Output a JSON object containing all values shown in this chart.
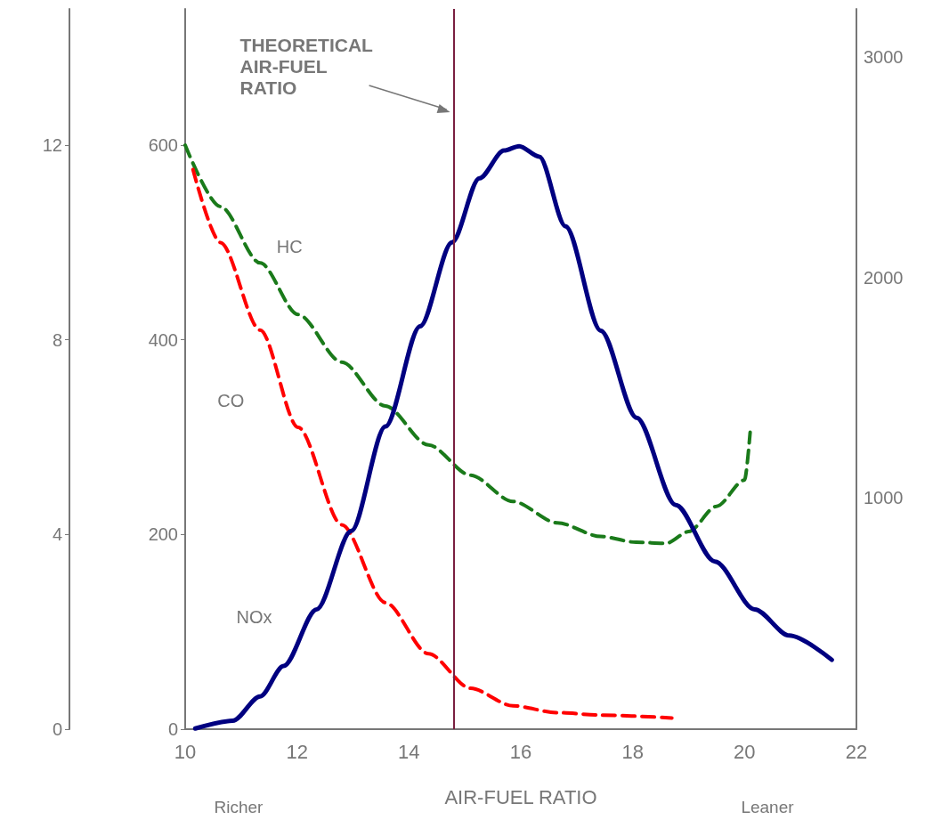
{
  "chart_data": {
    "type": "line",
    "xlabel": "AIR-FUEL RATIO",
    "xlim": [
      10,
      22
    ],
    "xticks": [
      10,
      12,
      14,
      16,
      18,
      20,
      22
    ],
    "ylim": [
      0,
      740
    ],
    "yticks": [
      0,
      200,
      400,
      600
    ],
    "y2lim": [
      0,
      14.8
    ],
    "y2ticks": [
      0,
      4,
      8,
      12
    ],
    "y3lim": [
      -50,
      3220
    ],
    "y3ticks": [
      1000,
      2000,
      3000
    ],
    "grid": false,
    "legend": false,
    "marker": "none",
    "ref_lines": [
      {
        "axis": "x",
        "value": 14.8,
        "label": "THEORETICAL AIR-FUEL RATIO",
        "color": "#7a2040"
      }
    ],
    "annotations": [
      "Richer",
      "Leaner"
    ],
    "series": [
      {
        "name": "HC",
        "axis": "y",
        "color": "#1a7a1a",
        "line_style": "dashed",
        "x": [
          10,
          10.63,
          11.34,
          12.02,
          12.8,
          13.58,
          14.35,
          15.1,
          15.86,
          16.65,
          17.43,
          18.06,
          18.6,
          19.0,
          19.5,
          20.0,
          20.1
        ],
        "values": [
          600,
          537,
          479,
          426,
          377,
          332,
          292,
          261,
          234,
          212,
          198,
          192,
          191,
          203,
          229,
          256,
          305
        ]
      },
      {
        "name": "CO",
        "axis": "y2",
        "color": "#ff0000",
        "line_style": "dashed",
        "x": [
          10.14,
          10.63,
          11.34,
          12.02,
          12.8,
          13.58,
          14.35,
          15.1,
          15.86,
          16.65,
          17.43,
          18.7
        ],
        "values": [
          11.5,
          10.0,
          8.2,
          6.2,
          4.2,
          2.6,
          1.55,
          0.84,
          0.48,
          0.34,
          0.29,
          0.23
        ]
      },
      {
        "name": "NOx",
        "axis": "y3",
        "color": "#000080",
        "line_style": "solid",
        "x": [
          10.18,
          10.85,
          11.34,
          11.76,
          12.35,
          12.97,
          13.58,
          14.2,
          14.77,
          15.26,
          15.7,
          15.97,
          16.33,
          16.8,
          17.43,
          18.07,
          18.77,
          19.47,
          20.18,
          20.8,
          21.56
        ],
        "values": [
          -47,
          -12,
          99,
          237,
          494,
          850,
          1324,
          1779,
          2160,
          2451,
          2577,
          2597,
          2549,
          2233,
          1759,
          1364,
          968,
          711,
          494,
          375,
          265
        ]
      }
    ]
  }
}
